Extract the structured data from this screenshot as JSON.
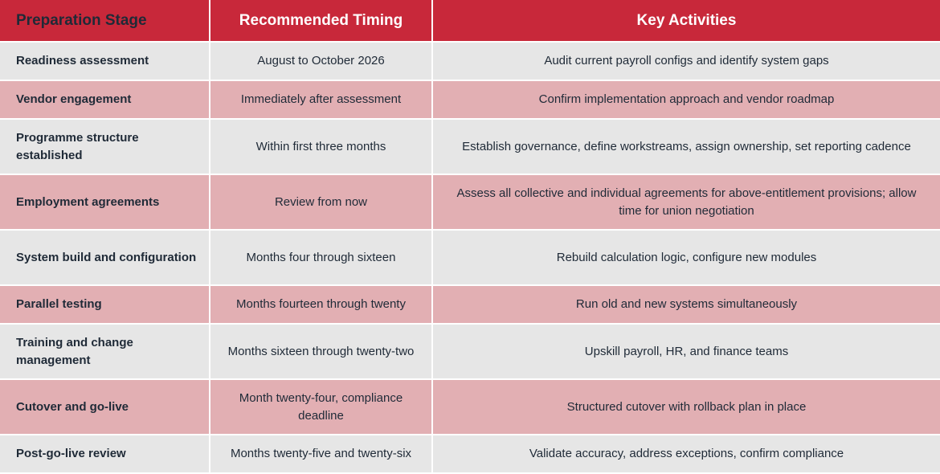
{
  "headers": {
    "stage": "Preparation Stage",
    "timing": "Recommended Timing",
    "activities": "Key Activities"
  },
  "rows": [
    {
      "stage": "Readiness assessment",
      "timing": "August to October 2026",
      "activities": "Audit current payroll configs and identify system gaps"
    },
    {
      "stage": "Vendor engagement",
      "timing": "Immediately after assessment",
      "activities": "Confirm implementation approach and vendor roadmap"
    },
    {
      "stage": "Programme structure established",
      "timing": "Within first three months",
      "activities": "Establish governance, define workstreams, assign ownership, set reporting cadence"
    },
    {
      "stage": "Employment agreements",
      "timing": "Review from now",
      "activities": "Assess all collective and individual agreements for above-entitlement provisions; allow time for union negotiation"
    },
    {
      "stage": "System build and configuration",
      "timing": "Months four through sixteen",
      "activities": "Rebuild calculation logic, configure new modules"
    },
    {
      "stage": "Parallel testing",
      "timing": "Months fourteen through twenty",
      "activities": "Run old and new systems simultaneously"
    },
    {
      "stage": "Training and change management",
      "timing": "Months sixteen through twenty-two",
      "activities": "Upskill payroll, HR, and finance teams"
    },
    {
      "stage": "Cutover and go-live",
      "timing": "Month twenty-four, compliance deadline",
      "activities": "Structured cutover with rollback plan in place"
    },
    {
      "stage": "Post-go-live review",
      "timing": "Months twenty-five and twenty-six",
      "activities": "Validate accuracy, address exceptions, confirm compliance"
    }
  ],
  "colors": {
    "header_bg": "#c8283a",
    "row_light": "#e6e6e6",
    "row_pink": "#e2afb3",
    "text": "#1f2a37"
  }
}
